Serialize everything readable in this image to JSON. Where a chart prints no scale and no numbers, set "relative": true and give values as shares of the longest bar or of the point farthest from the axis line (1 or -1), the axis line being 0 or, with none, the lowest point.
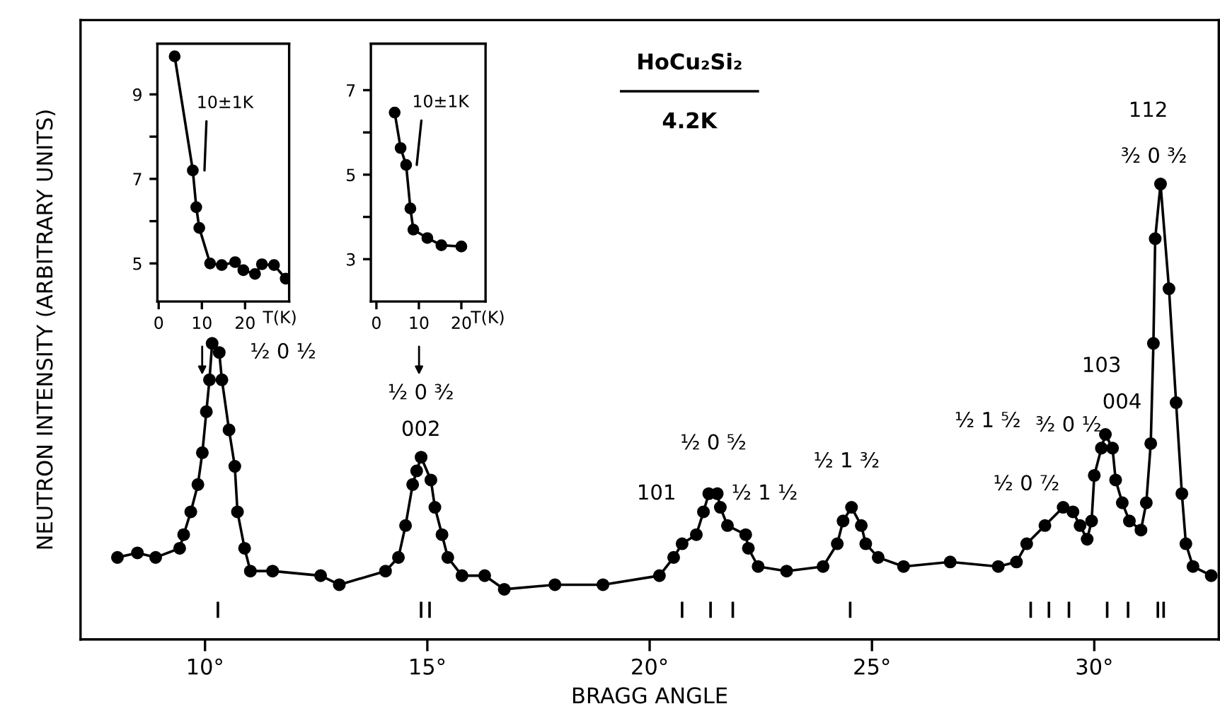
{
  "chart_data": [
    {
      "type": "line",
      "title": "HoCu₂Si₂",
      "subtitle": "4.2K",
      "xlabel": "BRAGG ANGLE",
      "ylabel": "NEUTRON INTENSITY (ARBITRARY UNITS)",
      "relative": true,
      "marker": "circle",
      "line_style": "solid",
      "grid": false,
      "legend": false,
      "tick_labels": "x",
      "xlim": [
        7.2,
        32.8
      ],
      "xticks": [
        {
          "value": 10,
          "label": "10°"
        },
        {
          "value": 15,
          "label": "15°"
        },
        {
          "value": 20,
          "label": "20°"
        },
        {
          "value": 25,
          "label": "25°"
        },
        {
          "value": 30,
          "label": "30°"
        }
      ],
      "series": [
        {
          "type": "line",
          "color": "#000000",
          "x": [
            8.03,
            8.48,
            8.89,
            9.43,
            9.52,
            9.68,
            9.84,
            9.94,
            10.03,
            10.1,
            10.16,
            10.32,
            10.38,
            10.54,
            10.67,
            10.73,
            10.89,
            11.02,
            11.52,
            12.6,
            13.02,
            14.06,
            14.35,
            14.51,
            14.67,
            14.76,
            14.86,
            15.08,
            15.17,
            15.33,
            15.46,
            15.78,
            16.29,
            16.73,
            17.87,
            18.95,
            20.22,
            20.54,
            20.73,
            21.05,
            21.21,
            21.33,
            21.52,
            21.59,
            21.75,
            22.16,
            22.22,
            22.44,
            23.08,
            23.9,
            24.22,
            24.35,
            24.54,
            24.76,
            24.86,
            25.14,
            25.71,
            26.76,
            27.84,
            28.25,
            28.48,
            28.89,
            29.3,
            29.52,
            29.68,
            29.84,
            29.94,
            30.0,
            30.16,
            30.25,
            30.41,
            30.48,
            30.63,
            30.79,
            31.05,
            31.17,
            31.27,
            31.33,
            31.37,
            31.49,
            31.68,
            31.84,
            31.97,
            32.06,
            32.22,
            32.63
          ],
          "values": [
            0.18,
            0.19,
            0.18,
            0.2,
            0.23,
            0.28,
            0.34,
            0.41,
            0.5,
            0.57,
            0.65,
            0.63,
            0.57,
            0.46,
            0.38,
            0.28,
            0.2,
            0.15,
            0.15,
            0.14,
            0.12,
            0.15,
            0.18,
            0.25,
            0.34,
            0.37,
            0.4,
            0.35,
            0.29,
            0.23,
            0.18,
            0.14,
            0.14,
            0.11,
            0.12,
            0.12,
            0.14,
            0.18,
            0.21,
            0.23,
            0.28,
            0.32,
            0.32,
            0.29,
            0.25,
            0.23,
            0.2,
            0.16,
            0.15,
            0.16,
            0.21,
            0.26,
            0.29,
            0.25,
            0.21,
            0.18,
            0.16,
            0.17,
            0.16,
            0.17,
            0.21,
            0.25,
            0.29,
            0.28,
            0.25,
            0.22,
            0.26,
            0.36,
            0.42,
            0.45,
            0.42,
            0.35,
            0.3,
            0.26,
            0.24,
            0.3,
            0.43,
            0.65,
            0.88,
            1,
            0.77,
            0.52,
            0.32,
            0.21,
            0.16,
            0.14
          ]
        },
        {
          "type": "line",
          "marker": "none",
          "color": "#000000",
          "x": [
            10.29,
            10.29
          ],
          "values": [
            0.05,
            0.08
          ]
        },
        {
          "type": "line",
          "marker": "none",
          "color": "#000000",
          "x": [
            14.86,
            14.86
          ],
          "values": [
            0.05,
            0.08
          ]
        },
        {
          "type": "line",
          "marker": "none",
          "color": "#000000",
          "x": [
            15.05,
            15.05
          ],
          "values": [
            0.05,
            0.08
          ]
        },
        {
          "type": "line",
          "marker": "none",
          "color": "#000000",
          "x": [
            20.73,
            20.73
          ],
          "values": [
            0.05,
            0.08
          ]
        },
        {
          "type": "line",
          "marker": "none",
          "color": "#000000",
          "x": [
            21.37,
            21.37
          ],
          "values": [
            0.05,
            0.08
          ]
        },
        {
          "type": "line",
          "marker": "none",
          "color": "#000000",
          "x": [
            21.87,
            21.87
          ],
          "values": [
            0.05,
            0.08
          ]
        },
        {
          "type": "line",
          "marker": "none",
          "color": "#000000",
          "x": [
            24.51,
            24.51
          ],
          "values": [
            0.05,
            0.08
          ]
        },
        {
          "type": "line",
          "marker": "none",
          "color": "#000000",
          "x": [
            28.57,
            28.57
          ],
          "values": [
            0.05,
            0.08
          ]
        },
        {
          "type": "line",
          "marker": "none",
          "color": "#000000",
          "x": [
            28.98,
            28.98
          ],
          "values": [
            0.05,
            0.08
          ]
        },
        {
          "type": "line",
          "marker": "none",
          "color": "#000000",
          "x": [
            29.43,
            29.43
          ],
          "values": [
            0.05,
            0.08
          ]
        },
        {
          "type": "line",
          "marker": "none",
          "color": "#000000",
          "x": [
            30.29,
            30.29
          ],
          "values": [
            0.05,
            0.08
          ]
        },
        {
          "type": "line",
          "marker": "none",
          "color": "#000000",
          "x": [
            30.76,
            30.76
          ],
          "values": [
            0.05,
            0.08
          ]
        },
        {
          "type": "line",
          "marker": "none",
          "color": "#000000",
          "x": [
            31.43,
            31.43
          ],
          "values": [
            0.05,
            0.08
          ]
        },
        {
          "type": "line",
          "marker": "none",
          "color": "#000000",
          "x": [
            31.56,
            31.56
          ],
          "values": [
            0.05,
            0.08
          ]
        }
      ],
      "annotations": [
        "½ 0 ½",
        "½ 0 ³⁄₂",
        "002",
        "½ 0 ⁵⁄₂",
        "101",
        "½ 1 ½",
        "½ 1 ³⁄₂",
        "½ 1 ⁵⁄₂",
        "³⁄₂ 0 ½",
        "½ 0 ⁷⁄₂",
        "103",
        "004",
        "112",
        "³⁄₂ 0 ³⁄₂"
      ]
    },
    {
      "type": "line",
      "xlabel": "T(K)",
      "marker": "circle",
      "line_style": "solid",
      "xlim": [
        -0.3,
        30.2
      ],
      "xticks": [
        0,
        10,
        20
      ],
      "ylim": [
        4.1,
        10.2
      ],
      "yticks": [
        5,
        {
          "value": 6,
          "label": null
        },
        7,
        {
          "value": 8,
          "label": null
        },
        9
      ],
      "series": [
        {
          "color": "#000000",
          "x": [
            3.7,
            7.9,
            8.7,
            9.4,
            11.9,
            14.6,
            17.7,
            19.6,
            22.3,
            23.9,
            26.7,
            29.4
          ],
          "values": [
            9.9,
            7.2,
            6.33,
            5.84,
            5.0,
            4.96,
            5.03,
            4.84,
            4.75,
            4.98,
            4.96,
            4.64
          ]
        }
      ],
      "annotations": [
        {
          "text": "10±1K",
          "x": 10.6,
          "y": 7.2
        }
      ]
    },
    {
      "type": "line",
      "xlabel": "T(K)",
      "marker": "circle",
      "line_style": "solid",
      "xlim": [
        -1.3,
        25.7
      ],
      "xticks": [
        0,
        10,
        20
      ],
      "ylim": [
        2.0,
        8.1
      ],
      "yticks": [
        3,
        {
          "value": 4,
          "label": null
        },
        5,
        {
          "value": 6,
          "label": null
        },
        7
      ],
      "series": [
        {
          "color": "#000000",
          "x": [
            4.3,
            5.7,
            7.0,
            8.0,
            8.7,
            12.0,
            15.3,
            20.0
          ],
          "values": [
            6.47,
            5.63,
            5.23,
            4.2,
            3.7,
            3.5,
            3.33,
            3.3
          ]
        }
      ],
      "annotations": [
        "10±1K"
      ]
    }
  ]
}
